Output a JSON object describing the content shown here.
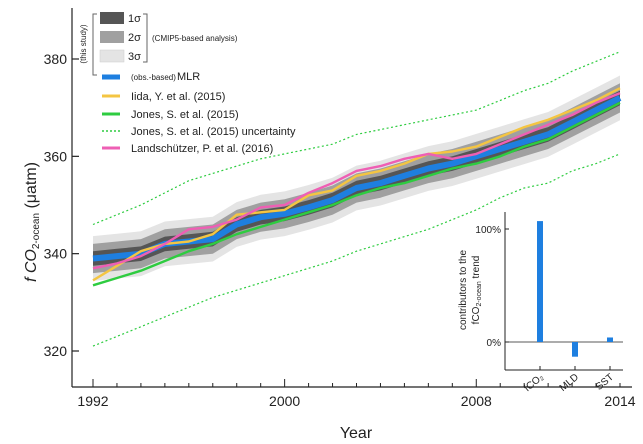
{
  "chart_data": {
    "type": "line",
    "xlabel": "Year",
    "ylabel_main": "f CO",
    "ylabel_sub": "2-ocean",
    "ylabel_unit": " (μatm)",
    "xlim": [
      1992,
      2014
    ],
    "ylim": [
      310,
      390
    ],
    "x_ticks": [
      1992,
      2000,
      2008,
      2014
    ],
    "y_ticks": [
      320,
      340,
      360,
      380
    ],
    "x": [
      1992,
      1993,
      1994,
      1995,
      1996,
      1997,
      1998,
      1999,
      2000,
      2001,
      2002,
      2003,
      2004,
      2005,
      2006,
      2007,
      2008,
      2009,
      2010,
      2011,
      2012,
      2013,
      2014
    ],
    "bands": [
      {
        "name": "1σ",
        "color": "#555555",
        "half_width": 1.5
      },
      {
        "name": "2σ",
        "color": "#a0a0a0",
        "half_width": 3.0
      },
      {
        "name": "3σ",
        "color": "#e4e4e4",
        "half_width": 4.6
      }
    ],
    "series": [
      {
        "name": "(obs.-based) MLR",
        "color": "#1e7fe0",
        "style": "band",
        "values": [
          339.0,
          339.5,
          340.0,
          342.0,
          342.5,
          343.0,
          346.0,
          347.5,
          348.2,
          349.5,
          351.0,
          353.5,
          354.5,
          356.0,
          357.5,
          358.5,
          360.0,
          361.5,
          363.0,
          364.5,
          367.0,
          369.5,
          372.0
        ]
      },
      {
        "name": "Iida, Y. et al. (2015)",
        "color": "#f4c542",
        "style": "solid",
        "values": [
          334.5,
          337.5,
          340.5,
          342.0,
          342.5,
          344.0,
          348.0,
          348.5,
          349.0,
          352.0,
          353.0,
          356.0,
          357.0,
          358.5,
          360.5,
          361.0,
          362.0,
          364.0,
          366.0,
          367.5,
          369.5,
          371.5,
          374.0
        ]
      },
      {
        "name": "Jones, S. et al. (2015)",
        "color": "#2ecc40",
        "style": "solid",
        "values": [
          333.5,
          335.0,
          336.5,
          338.5,
          340.5,
          342.0,
          344.0,
          345.5,
          347.0,
          348.5,
          350.0,
          352.0,
          353.5,
          354.5,
          356.0,
          357.5,
          358.5,
          360.0,
          362.0,
          363.5,
          366.0,
          368.5,
          371.0
        ]
      },
      {
        "name": "Landschützer, P. et al. (2016)",
        "color": "#ee5fb4",
        "style": "solid",
        "values": [
          337.0,
          338.0,
          339.5,
          342.0,
          345.0,
          345.5,
          347.0,
          349.5,
          350.0,
          352.5,
          354.5,
          357.0,
          358.0,
          359.5,
          360.5,
          359.5,
          360.5,
          362.5,
          364.5,
          366.5,
          368.5,
          371.0,
          373.0
        ]
      }
    ],
    "uncertainty": {
      "name": "Jones, S. et al. (2015) uncertainty",
      "color": "#2ecc40",
      "style": "dotted",
      "upper": [
        346.0,
        348.0,
        350.0,
        352.5,
        355.0,
        356.5,
        358.0,
        359.5,
        360.5,
        361.5,
        362.5,
        364.5,
        365.5,
        366.5,
        367.5,
        368.5,
        369.5,
        371.5,
        373.5,
        375.0,
        377.5,
        379.5,
        381.5
      ],
      "lower": [
        321.0,
        323.0,
        325.0,
        327.0,
        329.0,
        331.0,
        332.5,
        334.0,
        335.5,
        337.0,
        338.5,
        340.5,
        342.0,
        343.5,
        345.0,
        347.0,
        349.0,
        351.5,
        353.5,
        354.5,
        357.0,
        358.5,
        360.5
      ]
    },
    "legend": {
      "bracket_label": "(this study)",
      "sigma_1": "1σ",
      "sigma_2": "2σ",
      "sigma_3": "3σ",
      "cmip_note": "(CMIP5-based analysis)",
      "mlr_prefix": "(obs.-based)",
      "mlr_label": "MLR",
      "iida_label": "Iida, Y. et al. (2015)",
      "jones_label": "Jones, S. et al. (2015)",
      "jones_unc_label": "Jones, S. et al. (2015) uncertainty",
      "landsch_label": "Landschützer, P. et al. (2016)"
    },
    "inset": {
      "type": "bar",
      "ylabel_line1": "contributors to the",
      "ylabel_line2_main": "fCO",
      "ylabel_line2_sub": "2-ocean",
      "ylabel_line2_end": " trend",
      "y_ticks": [
        "100%",
        "0%"
      ],
      "categories": [
        "fCO₂",
        "MLD",
        "SST"
      ],
      "values": [
        107,
        -13,
        4
      ],
      "ylim": [
        -25,
        110
      ],
      "color": "#1e7fe0"
    }
  }
}
